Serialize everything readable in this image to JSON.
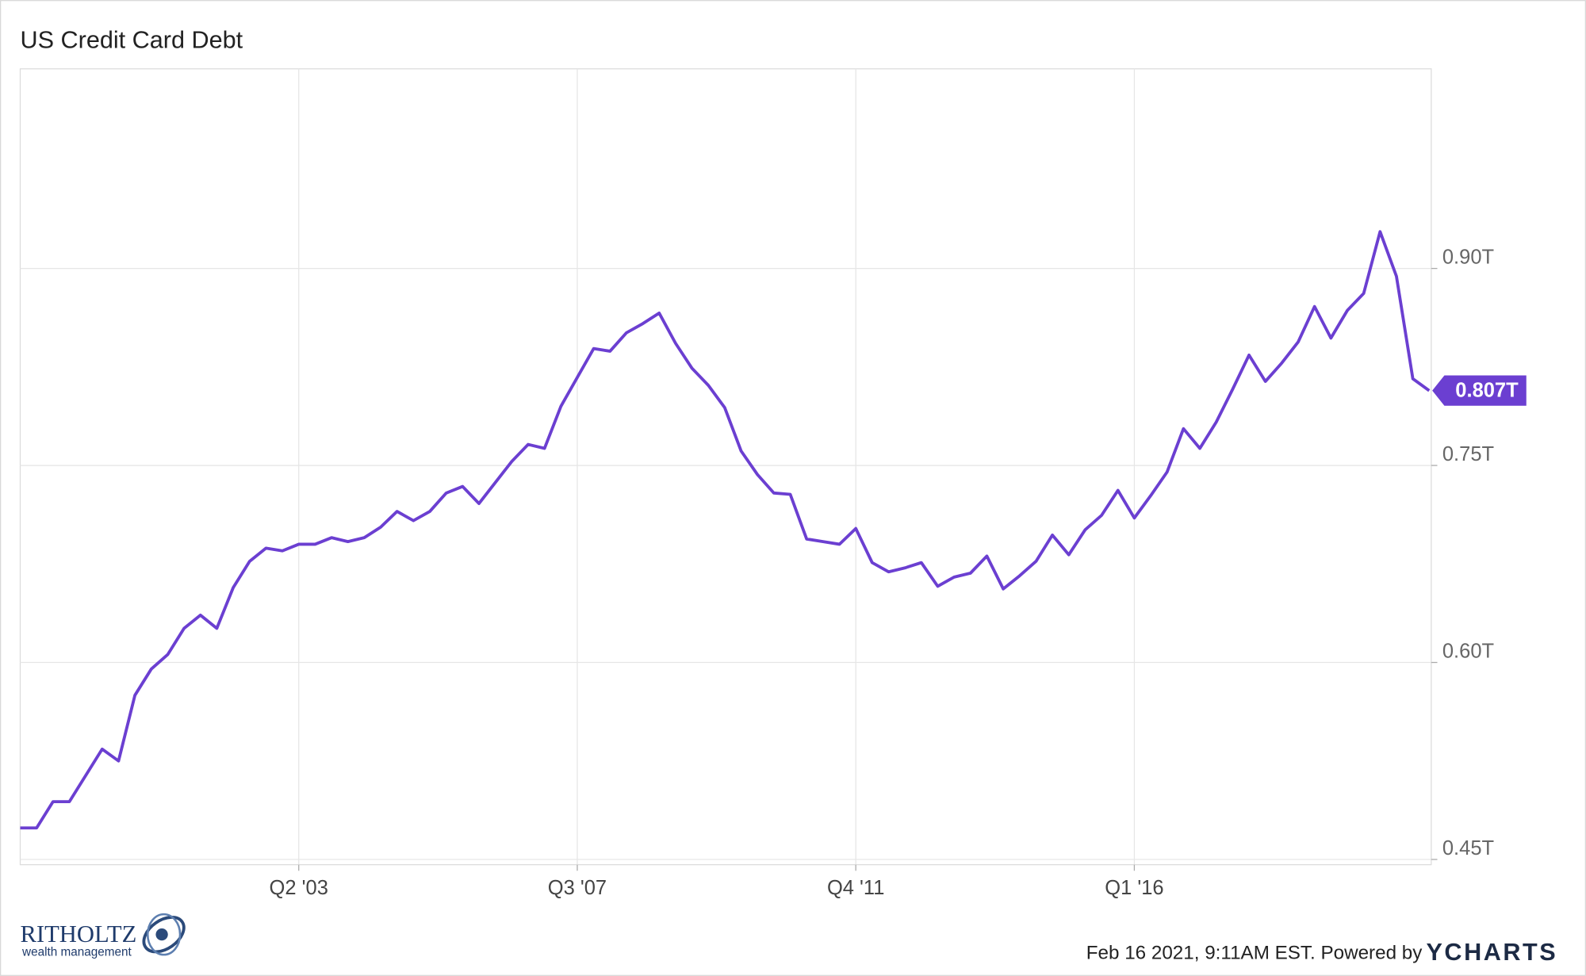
{
  "chart_data": {
    "type": "line",
    "title": "US Credit Card Debt",
    "categories": [
      null,
      null,
      null,
      null,
      null,
      null,
      null,
      null,
      null,
      null,
      null,
      null,
      null,
      null,
      null,
      null,
      null,
      "Q2 '03",
      null,
      null,
      null,
      null,
      null,
      null,
      null,
      null,
      null,
      null,
      null,
      null,
      null,
      null,
      null,
      null,
      "Q3 '07",
      null,
      null,
      null,
      null,
      null,
      null,
      null,
      null,
      null,
      null,
      null,
      null,
      null,
      null,
      null,
      null,
      "Q4 '11",
      null,
      null,
      null,
      null,
      null,
      null,
      null,
      null,
      null,
      null,
      null,
      null,
      null,
      null,
      null,
      null,
      "Q1 '16",
      null,
      null,
      null,
      null,
      null,
      null,
      null,
      null,
      null,
      null,
      null,
      null,
      null,
      null,
      null,
      null,
      null,
      null
    ],
    "series": [
      {
        "name": "US Credit Card Debt",
        "color": "#6b3fd1",
        "values": [
          0.474,
          0.474,
          0.494,
          0.494,
          0.514,
          0.534,
          0.525,
          0.575,
          0.595,
          0.606,
          0.626,
          0.636,
          0.626,
          0.657,
          0.677,
          0.687,
          0.685,
          0.69,
          0.69,
          0.695,
          0.692,
          0.695,
          0.703,
          0.715,
          0.708,
          0.715,
          0.729,
          0.734,
          0.721,
          0.737,
          0.753,
          0.766,
          0.763,
          0.795,
          0.817,
          0.839,
          0.837,
          0.851,
          0.858,
          0.866,
          0.843,
          0.824,
          0.811,
          0.794,
          0.761,
          0.743,
          0.729,
          0.728,
          0.694,
          0.692,
          0.69,
          0.702,
          0.676,
          0.669,
          0.672,
          0.676,
          0.658,
          0.665,
          0.668,
          0.681,
          0.656,
          0.666,
          0.677,
          0.697,
          0.682,
          0.701,
          0.712,
          0.731,
          0.71,
          0.727,
          0.745,
          0.778,
          0.763,
          0.783,
          0.808,
          0.834,
          0.814,
          0.828,
          0.844,
          0.871,
          0.847,
          0.868,
          0.881,
          0.928,
          0.894,
          0.816,
          0.807
        ],
        "value_labels": [
          null,
          null,
          null,
          null,
          null,
          null,
          null,
          null,
          null,
          null,
          null,
          null,
          null,
          null,
          null,
          null,
          null,
          null,
          null,
          null,
          null,
          null,
          null,
          null,
          null,
          null,
          null,
          null,
          null,
          null,
          null,
          null,
          null,
          null,
          null,
          null,
          null,
          null,
          null,
          null,
          null,
          null,
          null,
          null,
          null,
          null,
          null,
          null,
          null,
          null,
          null,
          null,
          null,
          null,
          null,
          null,
          null,
          null,
          null,
          null,
          null,
          null,
          null,
          null,
          null,
          null,
          null,
          null,
          null,
          null,
          null,
          null,
          null,
          null,
          null,
          null,
          null,
          null,
          null,
          null,
          null,
          null,
          null,
          null,
          null,
          null,
          "0.807T"
        ]
      }
    ],
    "ylim": [
      0.446,
      1.052
    ],
    "yticks": [
      {
        "value": 0.45,
        "label": "0.45T"
      },
      {
        "value": 0.6,
        "label": "0.60T"
      },
      {
        "value": 0.75,
        "label": "0.75T"
      },
      {
        "value": 0.9,
        "label": "0.90T"
      }
    ],
    "grid": true,
    "footer": "Feb 16 2021, 9:11AM EST. Powered by",
    "brand": "YCHARTS"
  },
  "logo": {
    "name": "RITHOLTZ",
    "tagline": "wealth management"
  }
}
